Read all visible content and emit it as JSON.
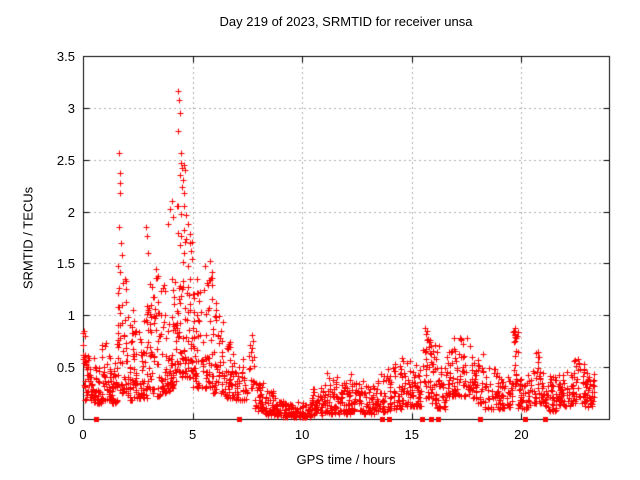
{
  "title": "Day 219 of 2023, SRMTID for receiver unsa",
  "xlabel": "GPS time / hours",
  "ylabel": "SRMTID / TECUs",
  "colors": {
    "marker": "#ff0000",
    "frame": "#000000",
    "grid": "#b0b0b0",
    "background": "#ffffff",
    "text": "#000000"
  },
  "chart_data": {
    "type": "scatter",
    "title": "Day 219 of 2023, SRMTID for receiver unsa",
    "xlabel": "GPS time / hours",
    "ylabel": "SRMTID / TECUs",
    "xlim": [
      0,
      24
    ],
    "ylim": [
      0,
      3.5
    ],
    "xticks": [
      0,
      5,
      10,
      15,
      20
    ],
    "yticks": [
      0,
      0.5,
      1,
      1.5,
      2,
      2.5,
      3,
      3.5
    ],
    "grid": true,
    "legend": "none",
    "series": [
      {
        "name": "SRMTID",
        "marker": "plus",
        "color": "#ff0000",
        "notable_points": [
          [
            0.05,
            0.85
          ],
          [
            0.07,
            0.8
          ],
          [
            1.66,
            2.56
          ],
          [
            1.68,
            2.37
          ],
          [
            1.69,
            2.28
          ],
          [
            1.71,
            2.18
          ],
          [
            1.63,
            1.85
          ],
          [
            1.73,
            1.7
          ],
          [
            1.76,
            1.58
          ],
          [
            1.59,
            1.48
          ],
          [
            2.05,
            0.98
          ],
          [
            2.3,
            1.05
          ],
          [
            2.87,
            1.85
          ],
          [
            2.91,
            1.76
          ],
          [
            2.95,
            1.6
          ],
          [
            3.05,
            1.3
          ],
          [
            3.35,
            1.45
          ],
          [
            3.42,
            1.38
          ],
          [
            3.9,
            1.88
          ],
          [
            3.97,
            2.02
          ],
          [
            4.07,
            2.1
          ],
          [
            4.12,
            1.95
          ],
          [
            4.35,
            3.16
          ],
          [
            4.38,
            3.08
          ],
          [
            4.41,
            2.95
          ],
          [
            4.34,
            2.78
          ],
          [
            4.45,
            2.56
          ],
          [
            4.48,
            2.47
          ],
          [
            4.51,
            2.42
          ],
          [
            4.43,
            2.35
          ],
          [
            4.55,
            2.3
          ],
          [
            4.53,
            2.24
          ],
          [
            4.59,
            2.18
          ],
          [
            4.62,
            2.45
          ],
          [
            4.66,
            2.4
          ],
          [
            4.6,
            2.05
          ],
          [
            4.72,
            1.97
          ],
          [
            4.8,
            1.88
          ],
          [
            4.88,
            1.78
          ],
          [
            4.95,
            1.62
          ],
          [
            5.18,
            1.35
          ],
          [
            5.58,
            1.48
          ],
          [
            5.78,
            1.52
          ],
          [
            5.88,
            1.42
          ],
          [
            6.08,
            1.12
          ],
          [
            7.72,
            0.81
          ],
          [
            7.74,
            0.75
          ],
          [
            7.7,
            0.68
          ],
          [
            11.15,
            0.44
          ],
          [
            12.25,
            0.43
          ],
          [
            13.92,
            0.48
          ],
          [
            15.62,
            0.88
          ],
          [
            15.66,
            0.82
          ],
          [
            15.7,
            0.76
          ],
          [
            16.25,
            0.7
          ],
          [
            16.95,
            0.78
          ],
          [
            17.25,
            0.76
          ],
          [
            19.7,
            0.88
          ],
          [
            19.72,
            0.81
          ],
          [
            19.68,
            0.74
          ],
          [
            19.74,
            0.66
          ],
          [
            20.75,
            0.65
          ],
          [
            20.8,
            0.6
          ],
          [
            22.6,
            0.58
          ],
          [
            22.65,
            0.54
          ]
        ],
        "cloud_segments_note": "dense unreadable point cloud summarized as [x_start, x_end, n_points, y_min, y_max]",
        "cloud_segments": [
          [
            0.0,
            0.12,
            14,
            0.3,
            0.85
          ],
          [
            0.1,
            0.5,
            40,
            0.18,
            0.62
          ],
          [
            0.5,
            0.85,
            34,
            0.15,
            0.5
          ],
          [
            0.85,
            1.25,
            40,
            0.18,
            0.75
          ],
          [
            1.25,
            1.55,
            32,
            0.15,
            0.55
          ],
          [
            1.55,
            1.95,
            45,
            0.25,
            1.45
          ],
          [
            1.95,
            2.35,
            42,
            0.18,
            0.95
          ],
          [
            2.35,
            2.75,
            40,
            0.2,
            0.9
          ],
          [
            2.75,
            3.1,
            40,
            0.2,
            1.1
          ],
          [
            3.1,
            3.55,
            42,
            0.22,
            1.4
          ],
          [
            3.55,
            4.0,
            42,
            0.25,
            1.3
          ],
          [
            4.0,
            4.3,
            40,
            0.3,
            1.75
          ],
          [
            4.3,
            4.62,
            42,
            0.4,
            2.1
          ],
          [
            4.62,
            5.0,
            44,
            0.4,
            1.8
          ],
          [
            5.0,
            5.45,
            44,
            0.3,
            1.3
          ],
          [
            5.45,
            5.9,
            44,
            0.3,
            1.4
          ],
          [
            5.9,
            6.4,
            44,
            0.25,
            1.05
          ],
          [
            6.4,
            6.9,
            40,
            0.2,
            0.75
          ],
          [
            6.9,
            7.5,
            40,
            0.18,
            0.62
          ],
          [
            7.55,
            7.85,
            14,
            0.3,
            0.82
          ],
          [
            7.85,
            8.3,
            40,
            0.08,
            0.38
          ],
          [
            8.3,
            8.8,
            42,
            0.04,
            0.28
          ],
          [
            8.8,
            9.6,
            60,
            0.02,
            0.18
          ],
          [
            9.6,
            10.4,
            60,
            0.02,
            0.16
          ],
          [
            10.4,
            11.0,
            50,
            0.04,
            0.3
          ],
          [
            11.0,
            11.6,
            46,
            0.05,
            0.42
          ],
          [
            11.6,
            12.2,
            46,
            0.05,
            0.36
          ],
          [
            12.2,
            12.8,
            46,
            0.07,
            0.4
          ],
          [
            12.8,
            13.4,
            46,
            0.05,
            0.32
          ],
          [
            13.4,
            14.0,
            42,
            0.07,
            0.45
          ],
          [
            14.0,
            14.55,
            42,
            0.1,
            0.55
          ],
          [
            14.55,
            15.05,
            42,
            0.12,
            0.6
          ],
          [
            15.05,
            15.5,
            38,
            0.12,
            0.6
          ],
          [
            15.5,
            15.85,
            30,
            0.2,
            0.85
          ],
          [
            15.85,
            16.15,
            30,
            0.15,
            0.72
          ],
          [
            16.15,
            16.6,
            36,
            0.1,
            0.5
          ],
          [
            16.6,
            17.05,
            40,
            0.22,
            0.68
          ],
          [
            17.05,
            17.75,
            46,
            0.22,
            0.78
          ],
          [
            17.75,
            18.3,
            42,
            0.15,
            0.68
          ],
          [
            18.3,
            19.0,
            44,
            0.1,
            0.5
          ],
          [
            19.0,
            19.6,
            42,
            0.1,
            0.42
          ],
          [
            19.6,
            19.85,
            22,
            0.3,
            0.86
          ],
          [
            19.85,
            20.5,
            44,
            0.1,
            0.45
          ],
          [
            20.5,
            21.0,
            40,
            0.15,
            0.65
          ],
          [
            21.0,
            21.6,
            42,
            0.08,
            0.42
          ],
          [
            21.6,
            22.3,
            46,
            0.12,
            0.46
          ],
          [
            22.3,
            22.9,
            44,
            0.15,
            0.58
          ],
          [
            22.9,
            23.35,
            40,
            0.12,
            0.45
          ]
        ],
        "seed": 20230219
      },
      {
        "name": "flagged-at-zero",
        "marker": "filled-square",
        "color": "#ff0000",
        "y": 0,
        "x_values": [
          0.6,
          7.14,
          13.63,
          13.98,
          15.48,
          15.86,
          16.22,
          18.1,
          20.18,
          21.08
        ]
      }
    ]
  }
}
